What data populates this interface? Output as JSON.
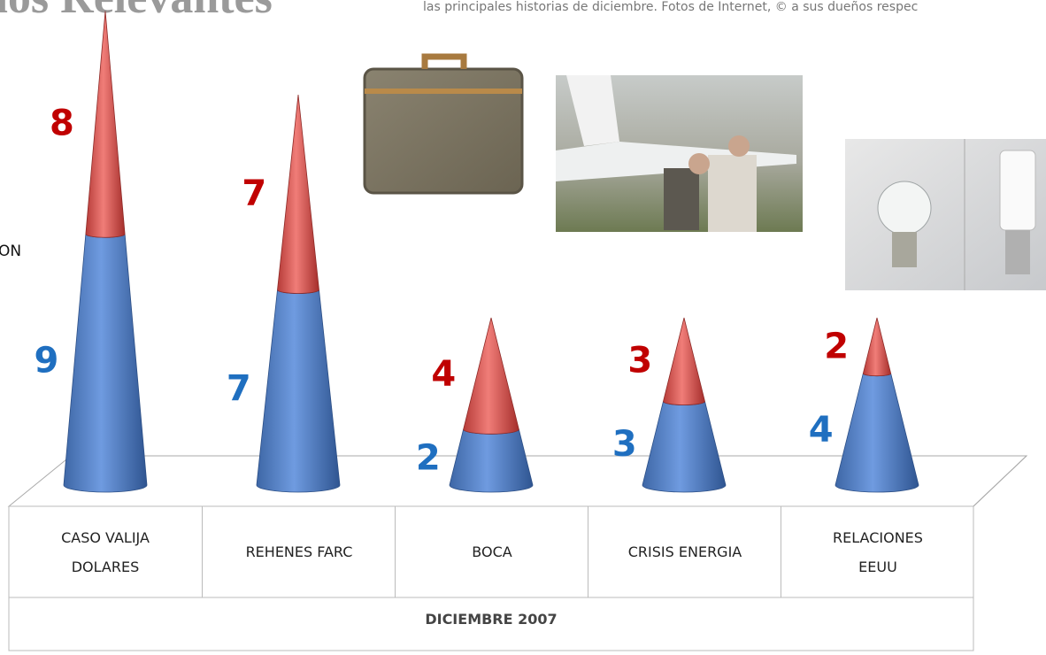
{
  "chart_data": {
    "type": "stacked-cone",
    "title": "nos Relevantes",
    "subtitle": "las principales historias de diciembre. Fotos de Internet, © a sus dueños respec",
    "legend_fragment": "ON",
    "period": "DICIEMBRE 2007",
    "categories": [
      "CASO VALIJA DOLARES",
      "REHENES FARC",
      "BOCA",
      "CRISIS ENERGIA",
      "RELACIONES EEUU"
    ],
    "series": [
      {
        "color": "#4f81bd",
        "label_color": "#1f6fc0",
        "values": [
          9,
          7,
          2,
          3,
          4
        ]
      },
      {
        "color": "#d9534f",
        "label_color": "#c00000",
        "values": [
          8,
          7,
          4,
          3,
          2
        ]
      }
    ]
  }
}
